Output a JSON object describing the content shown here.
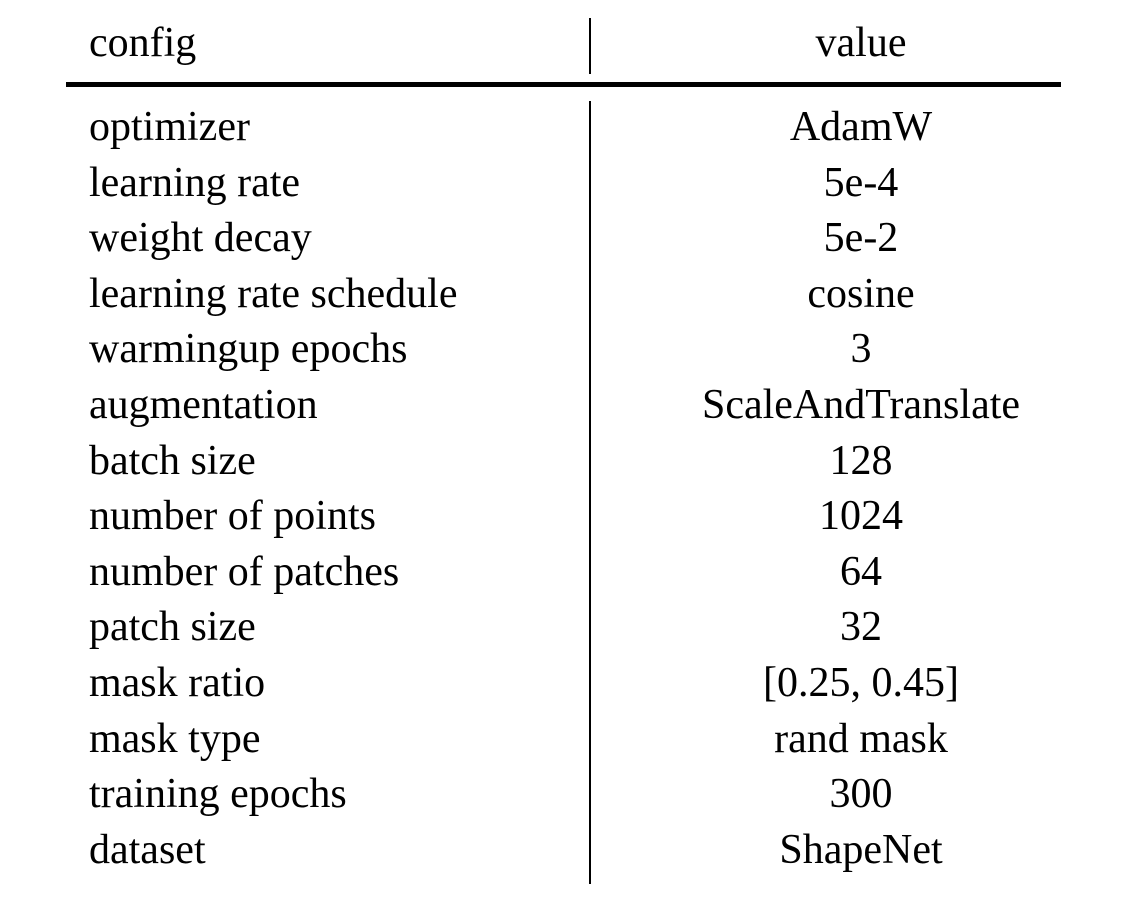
{
  "table": {
    "headers": {
      "config": "config",
      "value": "value"
    },
    "rows": [
      {
        "config": "optimizer",
        "value": "AdamW"
      },
      {
        "config": "learning rate",
        "value": "5e-4"
      },
      {
        "config": "weight decay",
        "value": "5e-2"
      },
      {
        "config": "learning rate schedule",
        "value": "cosine"
      },
      {
        "config": "warmingup epochs",
        "value": "3"
      },
      {
        "config": "augmentation",
        "value": "ScaleAndTranslate"
      },
      {
        "config": "batch size",
        "value": "128"
      },
      {
        "config": "number of points",
        "value": "1024"
      },
      {
        "config": "number of patches",
        "value": "64"
      },
      {
        "config": "patch size",
        "value": "32"
      },
      {
        "config": "mask ratio",
        "value": "[0.25, 0.45]"
      },
      {
        "config": "mask type",
        "value": "rand mask"
      },
      {
        "config": "training epochs",
        "value": "300"
      },
      {
        "config": "dataset",
        "value": "ShapeNet"
      }
    ]
  }
}
